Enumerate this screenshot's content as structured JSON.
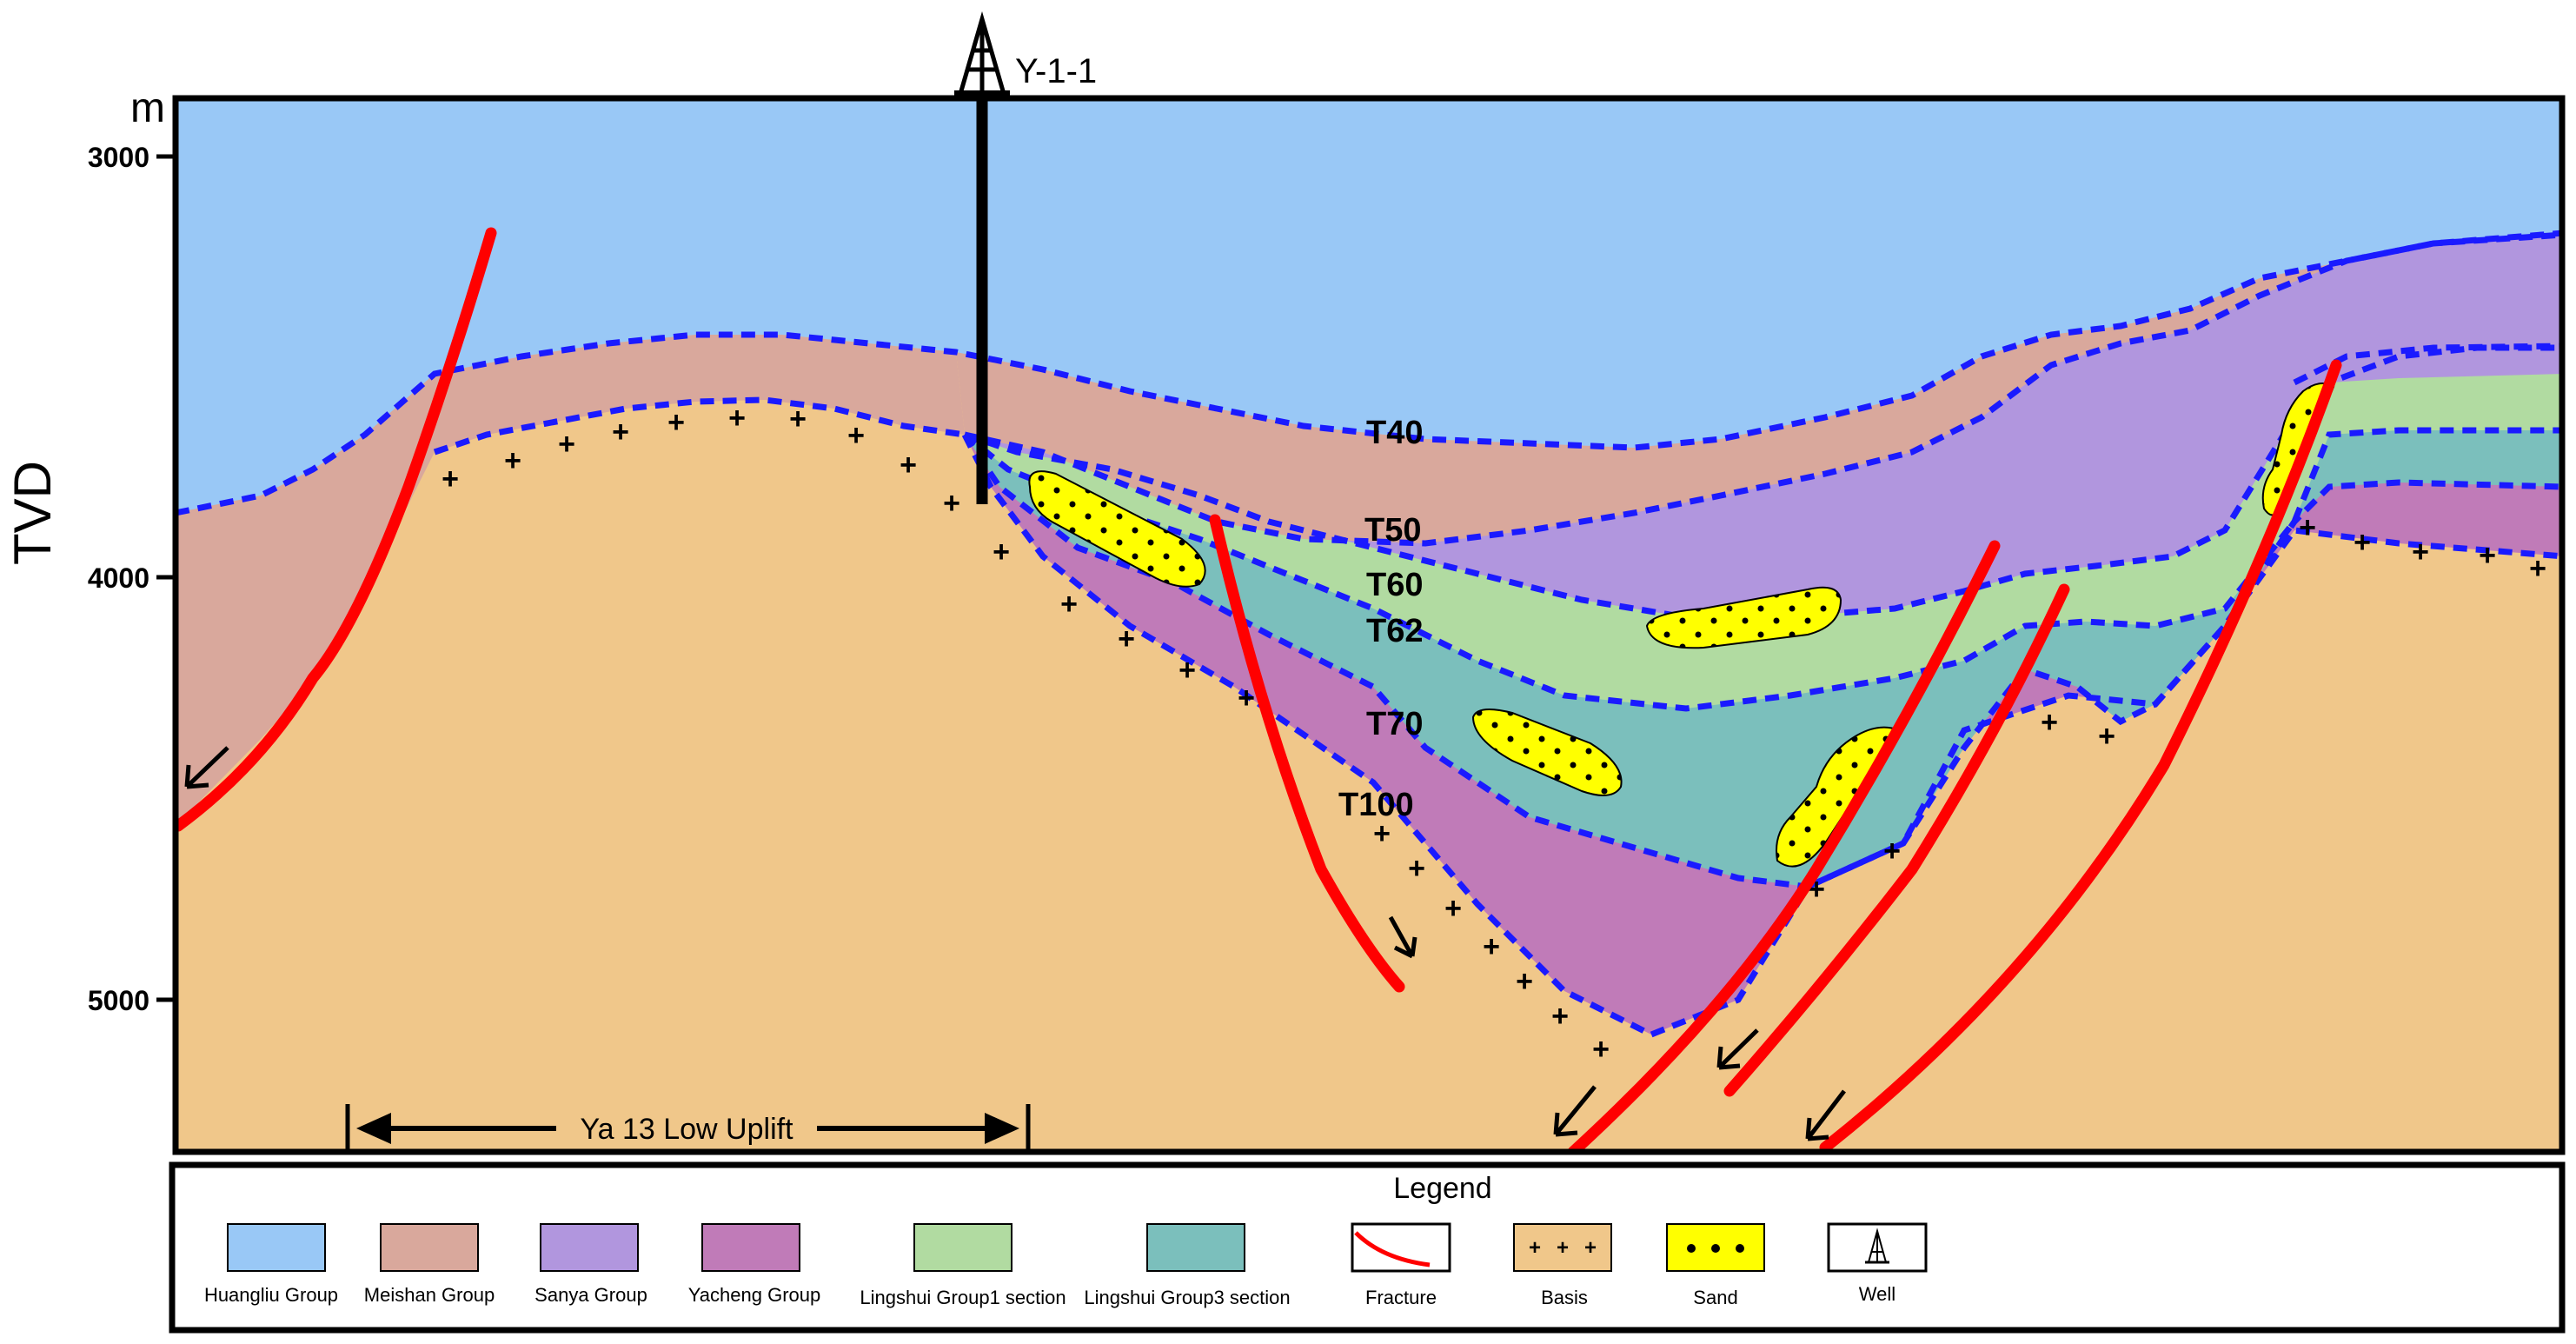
{
  "diagram": {
    "well_label": "Y-1-1",
    "axis": {
      "unit": "m",
      "label": "TVD",
      "ticks": [
        "3000",
        "4000",
        "5000"
      ]
    },
    "horizons": [
      "T40",
      "T50",
      "T60",
      "T62",
      "T70",
      "T100"
    ],
    "uplift_label": "Ya 13 Low Uplift",
    "legend": {
      "title": "Legend",
      "items": [
        {
          "label": "Huangliu Group",
          "color": "#99c8f6"
        },
        {
          "label": "Meishan Group",
          "color": "#d9a89c"
        },
        {
          "label": "Sanya Group",
          "color": "#b196de"
        },
        {
          "label": "Yacheng Group",
          "color": "#c07bb8"
        },
        {
          "label": "Lingshui Group1 section",
          "color": "#b1dba1"
        },
        {
          "label": "Lingshui Group3 section",
          "color": "#7bbfbc"
        },
        {
          "label": "Fracture",
          "color": "#ff0000"
        },
        {
          "label": "Basis",
          "color": "#f0c78a"
        },
        {
          "label": "Sand",
          "color": "#ffff00"
        },
        {
          "label": "Well",
          "color": "#ffffff"
        }
      ]
    }
  }
}
